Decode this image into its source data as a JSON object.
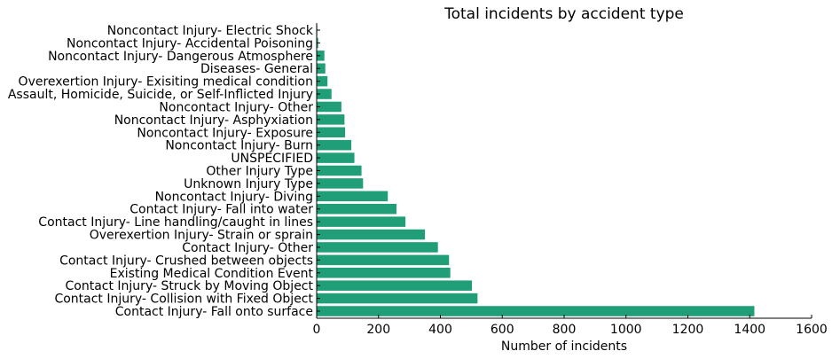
{
  "chart_data": {
    "type": "bar",
    "orientation": "horizontal",
    "title": "Total incidents by accident type",
    "xlabel": "Number of incidents",
    "ylabel": "",
    "xlim": [
      0,
      1600
    ],
    "x_ticks": [
      0,
      200,
      400,
      600,
      800,
      1000,
      1200,
      1400,
      1600
    ],
    "grid": false,
    "legend": "none",
    "bar_color": "#1f9e77",
    "categories": [
      "Noncontact Injury- Electric Shock",
      "Noncontact Injury- Accidental Poisoning",
      "Noncontact Injury- Dangerous Atmosphere",
      "Diseases- General",
      "Overexertion Injury- Exisiting medical condition",
      "Assault, Homicide, Suicide, or Self-Inflicted Injury",
      "Noncontact Injury- Other",
      "Noncontact Injury- Asphyxiation",
      "Noncontact Injury- Exposure",
      "Noncontact Injury- Burn",
      "UNSPECIFIED",
      "Other Injury Type",
      "Unknown Injury Type",
      "Noncontact Injury- Diving",
      "Contact Injury- Fall into water",
      "Contact Injury- Line handling/caught in lines",
      "Overexertion Injury- Strain or sprain",
      "Contact Injury- Other",
      "Contact Injury- Crushed between objects",
      "Existing Medical Condition Event",
      "Contact Injury- Struck by Moving Object",
      "Contact Injury- Collision with Fixed Object",
      "Contact Injury- Fall onto surface"
    ],
    "values": [
      2,
      5,
      25,
      28,
      35,
      48,
      80,
      90,
      92,
      112,
      122,
      145,
      150,
      230,
      258,
      287,
      350,
      392,
      428,
      432,
      502,
      520,
      1415
    ]
  }
}
